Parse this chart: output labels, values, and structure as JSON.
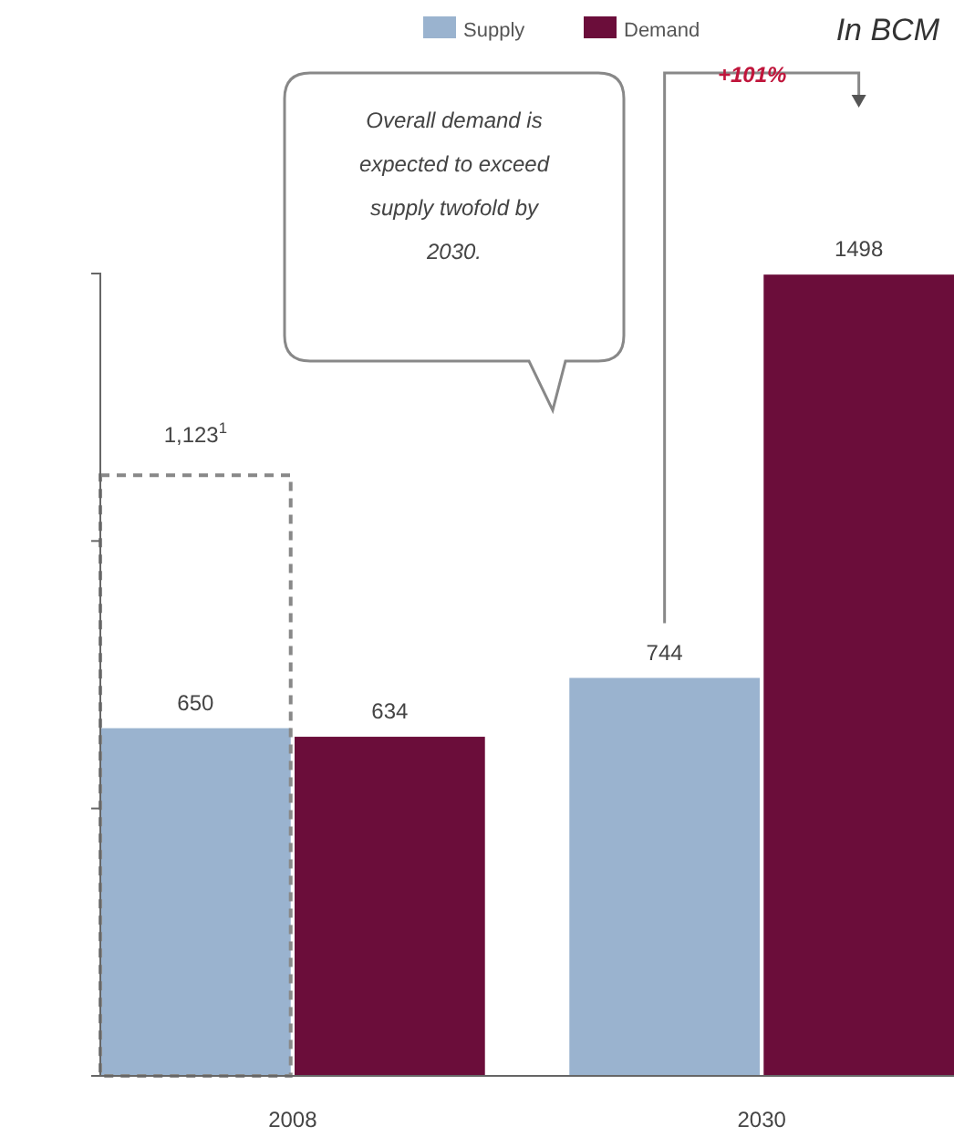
{
  "chart_data": {
    "type": "bar",
    "subtitle": "In BCM",
    "categories": [
      "2008",
      "2030"
    ],
    "series": [
      {
        "name": "Supply",
        "color": "#9ab3cf",
        "values": [
          650,
          744
        ]
      },
      {
        "name": "Demand",
        "color": "#6b0d3a",
        "values": [
          634,
          1498
        ]
      },
      {
        "color": "#888888",
        "values": [
          1123,
          null
        ],
        "line_style": "dashed",
        "value_labels": [
          "1,123$^{1}$",
          null
        ]
      }
    ],
    "ylim": [
      0,
      1500
    ],
    "yticks": [
      {
        "value": 0,
        "label": null
      },
      {
        "value": 500,
        "label": null
      },
      {
        "value": 1000,
        "label": null
      },
      {
        "value": 1500,
        "label": null
      }
    ],
    "tick_labels": "x",
    "data_labels": true,
    "legend": "top right",
    "annotations": [
      "Overall demand is expected to exceed supply twofold by 2030.",
      "+101%"
    ]
  }
}
